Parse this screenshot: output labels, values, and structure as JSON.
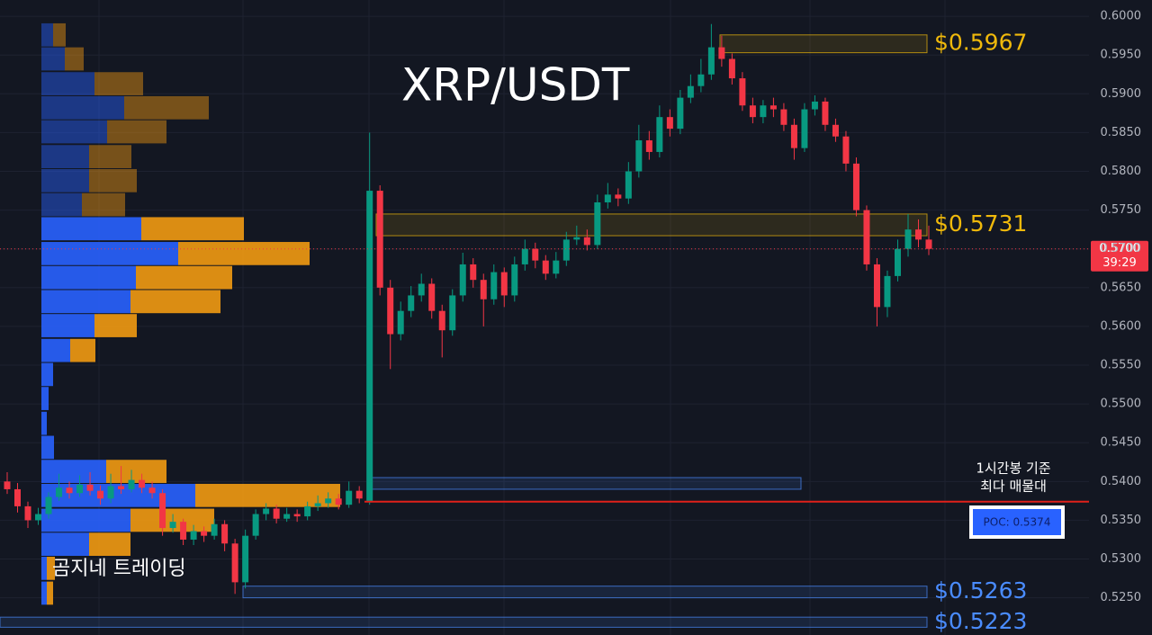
{
  "chart_data": {
    "type": "candlestick",
    "title": "XRP/USDT",
    "watermark": "곰지네 트레이딩",
    "up_color": "#089981",
    "down_color": "#f23645",
    "ylim": [
      0.5202,
      0.6021
    ],
    "yticks": [
      {
        "value": 0.525,
        "label": "0.5250"
      },
      {
        "value": 0.53,
        "label": "0.5300"
      },
      {
        "value": 0.535,
        "label": "0.5350"
      },
      {
        "value": 0.54,
        "label": "0.5400"
      },
      {
        "value": 0.545,
        "label": "0.5450"
      },
      {
        "value": 0.55,
        "label": "0.5500"
      },
      {
        "value": 0.555,
        "label": "0.5550"
      },
      {
        "value": 0.56,
        "label": "0.5600"
      },
      {
        "value": 0.565,
        "label": "0.5650"
      },
      {
        "value": 0.57,
        "label": "0.5700"
      },
      {
        "value": 0.575,
        "label": "0.5750"
      },
      {
        "value": 0.58,
        "label": "0.5800"
      },
      {
        "value": 0.585,
        "label": "0.5850"
      },
      {
        "value": 0.59,
        "label": "0.5900"
      },
      {
        "value": 0.595,
        "label": "0.5950"
      },
      {
        "value": 0.6,
        "label": "0.6000"
      }
    ],
    "grid": true,
    "open": [
      0.54,
      0.539,
      0.5368,
      0.535,
      0.5358,
      0.538,
      0.5392,
      0.5385,
      0.5396,
      0.5388,
      0.5378,
      0.5394,
      0.539,
      0.5402,
      0.5392,
      0.5385,
      0.534,
      0.5348,
      0.5325,
      0.5336,
      0.533,
      0.5345,
      0.532,
      0.527,
      0.533,
      0.5358,
      0.5365,
      0.5352,
      0.5358,
      0.5355,
      0.5368,
      0.5372,
      0.5378,
      0.537,
      0.5388,
      0.5374,
      0.5775,
      0.565,
      0.559,
      0.562,
      0.564,
      0.5655,
      0.562,
      0.5595,
      0.564,
      0.568,
      0.566,
      0.5635,
      0.567,
      0.564,
      0.568,
      0.57,
      0.5685,
      0.5668,
      0.5685,
      0.5712,
      0.5715,
      0.5705,
      0.576,
      0.577,
      0.5765,
      0.58,
      0.584,
      0.5825,
      0.587,
      0.5855,
      0.5895,
      0.591,
      0.5925,
      0.596,
      0.5945,
      0.592,
      0.5885,
      0.587,
      0.5885,
      0.588,
      0.586,
      0.583,
      0.588,
      0.589,
      0.586,
      0.5845,
      0.581,
      0.575,
      0.568,
      0.5625,
      0.5665,
      0.57,
      0.5725,
      0.5712
    ],
    "close": [
      0.539,
      0.5368,
      0.535,
      0.5358,
      0.538,
      0.5392,
      0.5385,
      0.5396,
      0.5388,
      0.5378,
      0.5394,
      0.539,
      0.5402,
      0.5392,
      0.5385,
      0.534,
      0.5348,
      0.5325,
      0.5336,
      0.533,
      0.5345,
      0.532,
      0.527,
      0.533,
      0.5358,
      0.5365,
      0.5352,
      0.5358,
      0.5355,
      0.5368,
      0.5372,
      0.5378,
      0.537,
      0.5388,
      0.5378,
      0.5775,
      0.565,
      0.559,
      0.562,
      0.564,
      0.5655,
      0.562,
      0.5595,
      0.564,
      0.568,
      0.566,
      0.5635,
      0.567,
      0.564,
      0.568,
      0.57,
      0.5685,
      0.5668,
      0.5685,
      0.5712,
      0.5715,
      0.5705,
      0.576,
      0.577,
      0.5765,
      0.58,
      0.584,
      0.5825,
      0.587,
      0.5855,
      0.5895,
      0.591,
      0.5925,
      0.596,
      0.5945,
      0.592,
      0.5885,
      0.587,
      0.5885,
      0.588,
      0.586,
      0.583,
      0.588,
      0.589,
      0.586,
      0.5845,
      0.581,
      0.575,
      0.568,
      0.5625,
      0.5665,
      0.57,
      0.5725,
      0.5712,
      0.57
    ],
    "high": [
      0.5412,
      0.5398,
      0.5374,
      0.5366,
      0.5386,
      0.541,
      0.54,
      0.5408,
      0.5412,
      0.5395,
      0.541,
      0.542,
      0.5415,
      0.541,
      0.54,
      0.539,
      0.5358,
      0.5352,
      0.5344,
      0.5342,
      0.5352,
      0.535,
      0.5326,
      0.5338,
      0.5364,
      0.5372,
      0.537,
      0.5366,
      0.5364,
      0.5374,
      0.5382,
      0.5386,
      0.5384,
      0.54,
      0.5394,
      0.585,
      0.5782,
      0.566,
      0.5632,
      0.5652,
      0.5668,
      0.5662,
      0.5628,
      0.5648,
      0.5695,
      0.5688,
      0.5668,
      0.568,
      0.5676,
      0.569,
      0.5712,
      0.5708,
      0.5692,
      0.5696,
      0.5722,
      0.573,
      0.5725,
      0.577,
      0.5785,
      0.5778,
      0.5812,
      0.586,
      0.5852,
      0.5885,
      0.588,
      0.5905,
      0.5925,
      0.5945,
      0.599,
      0.5975,
      0.5952,
      0.5928,
      0.5895,
      0.5892,
      0.5895,
      0.5888,
      0.5868,
      0.5888,
      0.5898,
      0.5895,
      0.5868,
      0.5852,
      0.5818,
      0.5756,
      0.5688,
      0.5672,
      0.5712,
      0.5745,
      0.5738,
      0.573
    ],
    "low": [
      0.5384,
      0.536,
      0.534,
      0.5344,
      0.5352,
      0.5375,
      0.5378,
      0.538,
      0.5382,
      0.537,
      0.5372,
      0.5384,
      0.5386,
      0.5385,
      0.5378,
      0.533,
      0.5334,
      0.5318,
      0.5318,
      0.5322,
      0.5325,
      0.531,
      0.5255,
      0.5262,
      0.5325,
      0.535,
      0.5346,
      0.5348,
      0.5348,
      0.535,
      0.5362,
      0.5366,
      0.5364,
      0.5366,
      0.5372,
      0.537,
      0.564,
      0.5545,
      0.5582,
      0.5612,
      0.5632,
      0.561,
      0.556,
      0.5588,
      0.5632,
      0.565,
      0.56,
      0.5628,
      0.5625,
      0.5632,
      0.5672,
      0.5675,
      0.566,
      0.5662,
      0.5678,
      0.5705,
      0.5698,
      0.57,
      0.5752,
      0.5755,
      0.5758,
      0.5792,
      0.5815,
      0.5818,
      0.5845,
      0.5848,
      0.5888,
      0.5902,
      0.5918,
      0.5935,
      0.5912,
      0.5878,
      0.5862,
      0.5862,
      0.587,
      0.5852,
      0.5815,
      0.5825,
      0.5872,
      0.5852,
      0.5838,
      0.58,
      0.5742,
      0.5672,
      0.56,
      0.5612,
      0.5658,
      0.569,
      0.5702,
      0.5692
    ],
    "volume_profile": {
      "buy_color": "#2962ff",
      "sell_color": "#f29a12",
      "levels": [
        0.5976,
        0.5945,
        0.5913,
        0.5882,
        0.5851,
        0.5819,
        0.5788,
        0.5757,
        0.5726,
        0.5694,
        0.5663,
        0.5632,
        0.5601,
        0.5569,
        0.5538,
        0.5507,
        0.5475,
        0.5444,
        0.5413,
        0.5382,
        0.535,
        0.5319,
        0.5288,
        0.5256
      ],
      "buy": [
        13,
        26,
        59,
        92,
        73,
        53,
        53,
        45,
        111,
        152,
        105,
        99,
        59,
        32,
        13,
        8,
        6,
        14,
        72,
        171,
        99,
        53,
        6,
        6
      ],
      "sell": [
        14,
        21,
        54,
        94,
        66,
        47,
        53,
        48,
        114,
        146,
        107,
        100,
        47,
        28,
        0,
        0,
        0,
        0,
        67,
        161,
        93,
        46,
        9,
        7
      ]
    },
    "zones": [
      {
        "label": "$0.5967",
        "top": 0.5976,
        "bottom": 0.5953,
        "color": "#f0b90b"
      },
      {
        "label": "$0.5731",
        "top": 0.5745,
        "bottom": 0.5717,
        "color": "#f0b90b"
      },
      {
        "label": "$0.5263",
        "top": 0.5265,
        "bottom": 0.525,
        "color": "#4a8cff"
      },
      {
        "label": "$0.5223",
        "top": 0.5225,
        "bottom": 0.5212,
        "color": "#4a8cff"
      },
      {
        "top": 0.5405,
        "bottom": 0.539,
        "color": "#4a8cff"
      }
    ],
    "poc": {
      "value": 0.5374,
      "label": "POC: 0.5374",
      "note": [
        "1시간봉 기준",
        "최다 매물대"
      ],
      "color": "#e0201a"
    },
    "last_price": {
      "value": 0.57,
      "label": "0.5700",
      "countdown": "39:29",
      "color": "#f23645"
    }
  }
}
